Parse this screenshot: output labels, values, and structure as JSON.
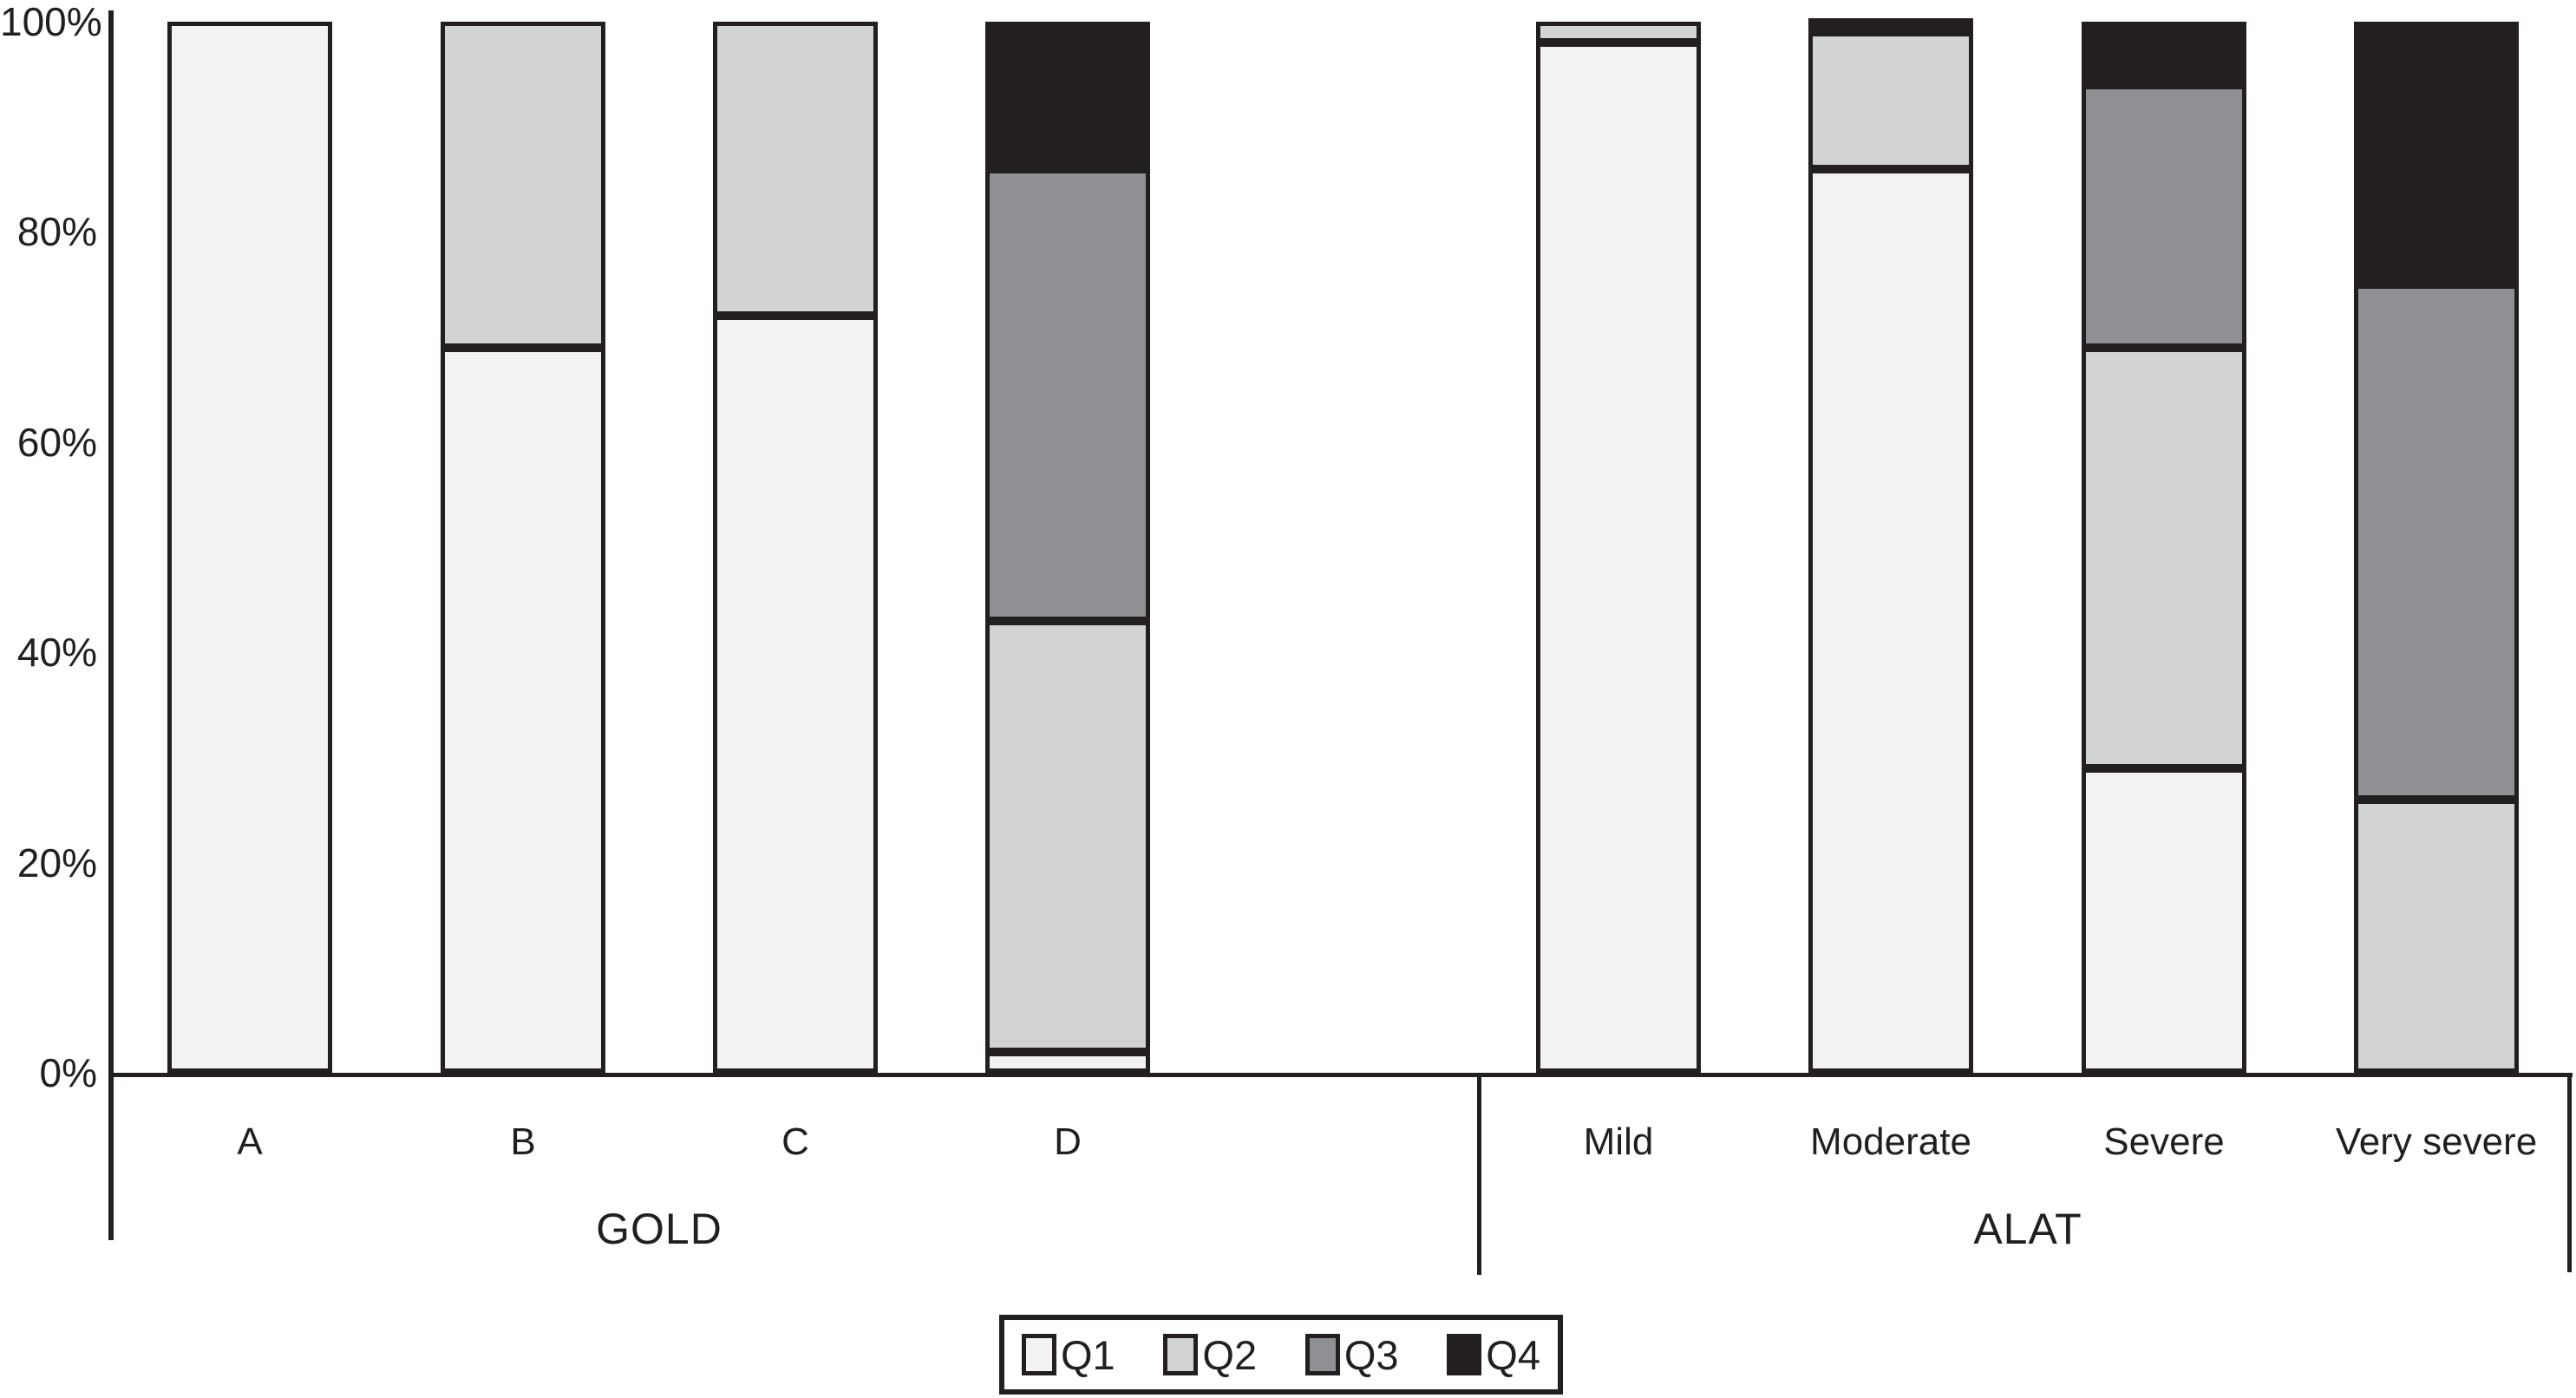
{
  "figure": {
    "background": "#ffffff",
    "text_color": "#231f20",
    "border_color": "#231f20"
  },
  "y_axis": {
    "ticks": [
      {
        "label": "100%",
        "value": 100
      },
      {
        "label": "80%",
        "value": 80
      },
      {
        "label": "60%",
        "value": 60
      },
      {
        "label": "40%",
        "value": 40
      },
      {
        "label": "20%",
        "value": 20
      },
      {
        "label": "0%",
        "value": 0
      }
    ]
  },
  "groups": [
    {
      "label": "GOLD",
      "categories": [
        "A",
        "B",
        "C",
        "D"
      ]
    },
    {
      "label": "ALAT",
      "categories": [
        "Mild",
        "Moderate",
        "Severe",
        "Very severe"
      ]
    }
  ],
  "chart_data": {
    "type": "bar",
    "stacked": true,
    "percent": true,
    "title": "",
    "xlabel": "",
    "ylabel": "",
    "ylim": [
      0,
      100
    ],
    "grid": false,
    "legend_position": "bottom",
    "categories": [
      "A",
      "B",
      "C",
      "D",
      "Mild",
      "Moderate",
      "Severe",
      "Very severe"
    ],
    "category_groups": [
      "GOLD",
      "GOLD",
      "GOLD",
      "GOLD",
      "ALAT",
      "ALAT",
      "ALAT",
      "ALAT"
    ],
    "series": [
      {
        "name": "Q1",
        "color": "#f2f2f2",
        "values": [
          100,
          69,
          72,
          2,
          98,
          86,
          29,
          0
        ]
      },
      {
        "name": "Q2",
        "color": "#d1d3d4",
        "values": [
          0,
          31,
          28,
          41,
          2,
          13,
          40,
          26
        ]
      },
      {
        "name": "Q3",
        "color": "#8e9093",
        "values": [
          0,
          0,
          0,
          43,
          0,
          0.5,
          25,
          49
        ]
      },
      {
        "name": "Q4",
        "color": "#231f20",
        "values": [
          0,
          0,
          0,
          14,
          0,
          0.5,
          6,
          25
        ]
      }
    ]
  }
}
